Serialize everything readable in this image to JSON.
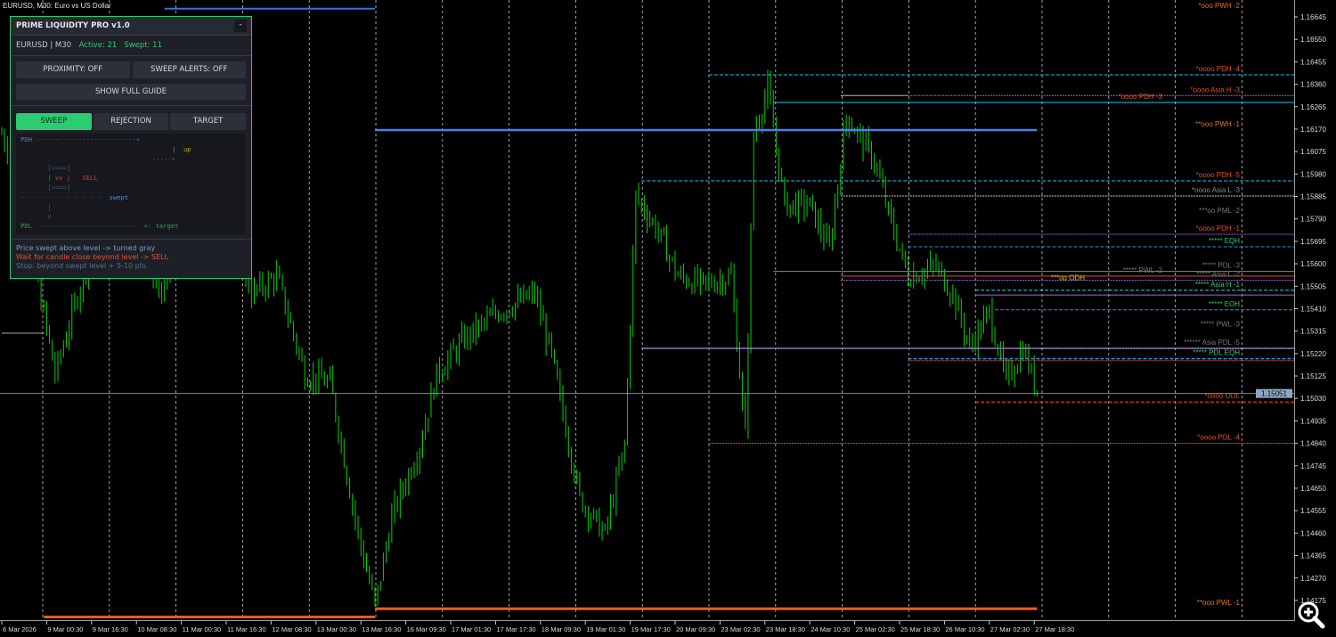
{
  "window": {
    "symbol_title": "EURUSD, M30:  Euro vs US Dollar"
  },
  "colors": {
    "candle": "#00d400",
    "grid": "#c8c8c8",
    "bg": "#000000",
    "panel_accent": "#2ecc71"
  },
  "panel": {
    "title": "PRIME LIQUIDITY PRO v1.0",
    "minimize_label": "-",
    "symbol_tf": "EURUSD | M30",
    "active": "Active: 21",
    "swept": "Swept: 11",
    "proximity_btn": "PROXIMITY: OFF",
    "alerts_btn": "SWEEP ALERTS: OFF",
    "guide_btn": "SHOW FULL GUIDE",
    "tabs": [
      {
        "label": "SWEEP",
        "active": true
      },
      {
        "label": "REJECTION",
        "active": false
      },
      {
        "label": "TARGET",
        "active": false
      }
    ],
    "diagram": {
      "pdh": "PDH",
      "pdh_line": " --------------------------+",
      "bar": "|",
      "up": "up",
      "short_line": "-----+",
      "box_top": "[====]",
      "box_mid": "| vv |",
      "sell": "SELL",
      "box_bot": "[====]",
      "swept_line": "- - - - - - - - - - -",
      "swept": "swept",
      "arrow_bar": "|",
      "arrow_v": "v",
      "pdl": "PDL",
      "pdl_line": " --------------------------",
      "target": "<- target"
    },
    "notes": [
      "Price swept above level -> turned gray",
      "Wait for candle close beyond level -> SELL",
      "Stop: beyond swept level + 5-10 pts"
    ]
  },
  "price_axis": {
    "ticks": [
      "1.16645",
      "1.16550",
      "1.16455",
      "1.16360",
      "1.16265",
      "1.16170",
      "1.16075",
      "1.15980",
      "1.15885",
      "1.15790",
      "1.15695",
      "1.15600",
      "1.15505",
      "1.15410",
      "1.15315",
      "1.15220",
      "1.15125",
      "1.15030",
      "1.14935",
      "1.14840",
      "1.14745",
      "1.14650",
      "1.14555",
      "1.14460",
      "1.14365",
      "1.14270",
      "1.14175"
    ],
    "current": "1.15051",
    "current_price": 1.15051
  },
  "time_axis": {
    "ticks": [
      "6 Mar 2026",
      "9 Mar 00:30",
      "9 Mar 16:30",
      "10 Mar 08:30",
      "11 Mar 00:30",
      "11 Mar 16:30",
      "12 Mar 08:30",
      "13 Mar 00:30",
      "13 Mar 16:30",
      "16 Mar 09:30",
      "17 Mar 01:30",
      "17 Mar 17:30",
      "18 Mar 09:30",
      "19 Mar 01:30",
      "19 Mar 17:30",
      "20 Mar 09:30",
      "23 Mar 02:30",
      "23 Mar 18:30",
      "24 Mar 10:30",
      "25 Mar 02:30",
      "25 Mar 18:30",
      "26 Mar 10:30",
      "27 Mar 02:30",
      "27 Mar 18:30"
    ],
    "bars_per_tick": 16
  },
  "close_path": [
    [
      0,
      1.16151
    ],
    [
      6,
      1.15963
    ],
    [
      19,
      1.15133
    ],
    [
      28,
      1.1551
    ],
    [
      38,
      1.15887
    ],
    [
      47,
      1.15774
    ],
    [
      57,
      1.15473
    ],
    [
      66,
      1.15774
    ],
    [
      79,
      1.1585
    ],
    [
      89,
      1.15473
    ],
    [
      98,
      1.15548
    ],
    [
      108,
      1.15133
    ],
    [
      117,
      1.15096
    ],
    [
      127,
      1.14455
    ],
    [
      133,
      1.14153
    ],
    [
      139,
      1.1453
    ],
    [
      149,
      1.14832
    ],
    [
      155,
      1.15133
    ],
    [
      165,
      1.15284
    ],
    [
      177,
      1.15397
    ],
    [
      190,
      1.15473
    ],
    [
      196,
      1.15209
    ],
    [
      206,
      1.14606
    ],
    [
      215,
      1.14455
    ],
    [
      222,
      1.14832
    ],
    [
      226,
      1.15887
    ],
    [
      234,
      1.15736
    ],
    [
      241,
      1.15548
    ],
    [
      250,
      1.1551
    ],
    [
      260,
      1.15548
    ],
    [
      265,
      1.14869
    ],
    [
      268,
      1.16151
    ],
    [
      273,
      1.1634
    ],
    [
      279,
      1.1585
    ],
    [
      288,
      1.1585
    ],
    [
      295,
      1.15661
    ],
    [
      301,
      1.16227
    ],
    [
      311,
      1.16038
    ],
    [
      317,
      1.15774
    ],
    [
      323,
      1.15548
    ],
    [
      333,
      1.15586
    ],
    [
      339,
      1.15473
    ],
    [
      345,
      1.15246
    ],
    [
      352,
      1.15397
    ],
    [
      358,
      1.15096
    ],
    [
      364,
      1.15246
    ],
    [
      369,
      1.15058
    ]
  ],
  "levels": [
    {
      "price": 1.1668,
      "from": 58,
      "to": 133,
      "color": "#3a6fe0",
      "style": "solid",
      "width": 2,
      "label": ""
    },
    {
      "price": 1.16705,
      "from": null,
      "to": null,
      "color": "#e07020",
      "style": "none",
      "width": 0,
      "label": "*ooo PWH -2"
    },
    {
      "price": 1.164,
      "from": 252,
      "to": null,
      "color": "#1ec8f0",
      "style": "dash",
      "width": 1,
      "label": "*oooo PDH -4",
      "label_color": "#e0502a"
    },
    {
      "price": 1.16312,
      "from": 299,
      "to": null,
      "color": "#9b6cd8",
      "style": "dot",
      "width": 1,
      "label": "*oooo Asia H -3",
      "label_color": "#e0502a"
    },
    {
      "price": 1.16312,
      "from": 299,
      "to": 323,
      "color": "#aaaaaa",
      "style": "solid",
      "width": 1,
      "label": ""
    },
    {
      "price": 1.16283,
      "from": 275,
      "to": null,
      "color": "#1ec8f0",
      "style": "solid",
      "width": 1,
      "label": "*oooo PDH -3",
      "label_color": "#e0502a"
    },
    {
      "price": 1.16166,
      "from": 133,
      "to": 369,
      "color": "#4a7ef0",
      "style": "solid",
      "width": 2.5,
      "label": "**ooo PWH -1",
      "label_color": "#e07a20"
    },
    {
      "price": 1.15951,
      "from": 228,
      "to": null,
      "color": "#1ec8f0",
      "style": "dash",
      "width": 1,
      "label": "*oooo PDH -5",
      "label_color": "#e0502a"
    },
    {
      "price": 1.15887,
      "from": 299,
      "to": null,
      "color": "#888888",
      "style": "dot",
      "width": 1.5,
      "label": "*oooo Asia L -3",
      "label_color": "#8a8a8a"
    },
    {
      "price": 1.158,
      "from": null,
      "to": null,
      "color": "#777777",
      "style": "none",
      "width": 0,
      "label": "***oo PML -2",
      "label_color": "#777777"
    },
    {
      "price": 1.15725,
      "from": 323,
      "to": null,
      "color": "#9b6cd8",
      "style": "dot",
      "width": 1,
      "label": "*oooo PDH -1",
      "label_color": "#e0502a"
    },
    {
      "price": 1.15672,
      "from": 323,
      "to": null,
      "color": "#2a8ff0",
      "style": "dash",
      "width": 1,
      "label": "***** EQH",
      "label_color": "#2ecc71"
    },
    {
      "price": 1.15568,
      "from": 275,
      "to": null,
      "color": "#888888",
      "style": "solid",
      "width": 1,
      "label": "***** PDL -3",
      "label_color": "#777777"
    },
    {
      "price": 1.15548,
      "from": 299,
      "to": null,
      "color": "#e0502a",
      "style": "solid",
      "width": 1,
      "label": "***** PWL -2",
      "label_color": "#777777"
    },
    {
      "price": 1.1553,
      "from": 299,
      "to": null,
      "color": "#9b6cd8",
      "style": "dot",
      "width": 1,
      "label": "***** Asia L -2",
      "label_color": "#777777"
    },
    {
      "price": 1.15515,
      "from": null,
      "to": null,
      "color": "#e0c020",
      "style": "none",
      "width": 0,
      "label": "***oo ODH",
      "label_color": "#e0c020"
    },
    {
      "price": 1.15488,
      "from": 347,
      "to": null,
      "color": "#20e0e0",
      "style": "dash",
      "width": 1,
      "label": "***** Asia H -1",
      "label_color": "#2ecc71"
    },
    {
      "price": 1.15468,
      "from": 347,
      "to": null,
      "color": "#9b6cd8",
      "style": "solid",
      "width": 1,
      "label": ""
    },
    {
      "price": 1.15405,
      "from": 354,
      "to": null,
      "color": "#2a8ff0",
      "style": "dash",
      "width": 1,
      "label": "***** EOH",
      "label_color": "#2ecc71"
    },
    {
      "price": 1.1532,
      "from": null,
      "to": null,
      "color": "#777777",
      "style": "none",
      "width": 0,
      "label": "***** PWL -3",
      "label_color": "#777777"
    },
    {
      "price": 1.15243,
      "from": 228,
      "to": null,
      "color": "#888888",
      "style": "solid",
      "width": 1,
      "label": "****** Asia PDL -5",
      "label_color": "#777777"
    },
    {
      "price": 1.1524,
      "from": 228,
      "to": null,
      "color": "#9b6cd8",
      "style": "dot",
      "width": 1,
      "label": ""
    },
    {
      "price": 1.15198,
      "from": 323,
      "to": null,
      "color": "#2a8ff0",
      "style": "dash",
      "width": 1.5,
      "label": "***** PDL EQH",
      "label_color": "#2ecc71"
    },
    {
      "price": 1.1519,
      "from": 323,
      "to": null,
      "color": "#e0502a",
      "style": "dot",
      "width": 1,
      "label": ""
    },
    {
      "price": 1.15015,
      "from": 347,
      "to": null,
      "color": "#ff5020",
      "style": "dash",
      "width": 1,
      "label": "*oooo ODL",
      "label_color": "#e0502a"
    },
    {
      "price": 1.1484,
      "from": 252,
      "to": null,
      "color": "#ff5020",
      "style": "dot",
      "width": 1,
      "label": "*oooo PDL -4",
      "label_color": "#e0502a"
    },
    {
      "price": 1.1414,
      "from": 133,
      "to": 369,
      "color": "#ff5a10",
      "style": "solid",
      "width": 3,
      "label": "**ooo PWL -1",
      "label_color": "#e07a20"
    },
    {
      "price": 1.14105,
      "from": 15,
      "to": 133,
      "color": "#ff5a10",
      "style": "solid",
      "width": 3,
      "label": ""
    },
    {
      "price": 1.15306,
      "from": 0,
      "to": 15,
      "color": "#aaaaaa",
      "style": "solid",
      "width": 1,
      "label": ""
    }
  ]
}
